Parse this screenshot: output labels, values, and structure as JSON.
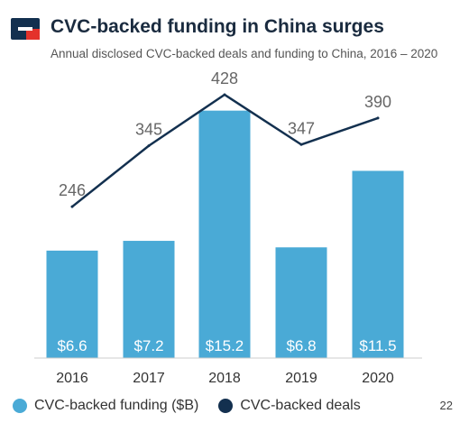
{
  "header": {
    "title": "CVC-backed funding in China surges",
    "subtitle": "Annual disclosed CVC-backed deals and funding to China, 2016 – 2020"
  },
  "colors": {
    "bar": "#4aaad6",
    "line": "#13304f",
    "logo_navy": "#13304f",
    "logo_red": "#e4322b"
  },
  "chart_data": {
    "type": "bar",
    "categories": [
      "2016",
      "2017",
      "2018",
      "2019",
      "2020"
    ],
    "series": [
      {
        "name": "CVC-backed funding ($B)",
        "type": "bar",
        "values": [
          6.6,
          7.2,
          15.2,
          6.8,
          11.5
        ],
        "labels": [
          "$6.6",
          "$7.2",
          "$15.2",
          "$6.8",
          "$11.5"
        ]
      },
      {
        "name": "CVC-backed deals",
        "type": "line",
        "values": [
          246,
          345,
          428,
          347,
          390
        ],
        "labels": [
          "246",
          "345",
          "428",
          "347",
          "390"
        ]
      }
    ],
    "bar_ylim": [
      0,
      16.4
    ],
    "line_ylim": [
      0,
      428
    ],
    "grid": false,
    "legend_position": "bottom-left"
  },
  "legend": {
    "items": [
      {
        "label": "CVC-backed funding ($B)",
        "color": "#4aaad6"
      },
      {
        "label": "CVC-backed deals",
        "color": "#13304f"
      }
    ]
  },
  "footer": {
    "page_number": "22"
  }
}
